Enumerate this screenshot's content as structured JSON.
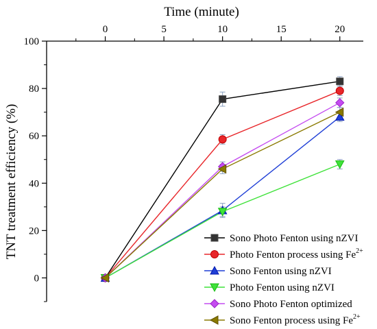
{
  "chart_data": {
    "type": "line",
    "title": "",
    "xlabel": "Time (minute)",
    "ylabel": "TNT treatment efficiency (%)",
    "xlim": [
      -5,
      22
    ],
    "ylim": [
      -10,
      100
    ],
    "x_axis_position": "top",
    "x_ticks": [
      0,
      5,
      10,
      15,
      20
    ],
    "y_ticks": [
      0,
      20,
      40,
      60,
      80,
      100
    ],
    "x": [
      0,
      10,
      20
    ],
    "legend_position": "bottom-right",
    "grid": false,
    "series": [
      {
        "name": "Sono Photo Fenton using nZVI",
        "color": "#000000",
        "marker": "square",
        "values": [
          0,
          75.5,
          83
        ],
        "errors": [
          0,
          3,
          2
        ]
      },
      {
        "name": "Photo Fenton process using Fe",
        "superscript": "2+",
        "color": "#e8262a",
        "marker": "circle",
        "values": [
          0,
          58.5,
          79
        ],
        "errors": [
          0,
          2,
          2
        ]
      },
      {
        "name": "Sono Fenton using nZVI",
        "color": "#1f3fd6",
        "marker": "triangle-up",
        "values": [
          0,
          28.5,
          68
        ],
        "errors": [
          0,
          3,
          2
        ]
      },
      {
        "name": "Photo Fenton using nZVI",
        "color": "#3fe23a",
        "marker": "triangle-down",
        "values": [
          0,
          28,
          48
        ],
        "errors": [
          0,
          2,
          2
        ]
      },
      {
        "name": "Sono Photo Fenton optimized",
        "color": "#c44bf0",
        "marker": "diamond",
        "values": [
          0,
          47,
          74
        ],
        "errors": [
          0,
          2,
          2
        ]
      },
      {
        "name": "Sono Fenton process using Fe",
        "superscript": "2+",
        "color": "#8a7a00",
        "marker": "triangle-left",
        "values": [
          0,
          46,
          70
        ],
        "errors": [
          0,
          2,
          2
        ]
      }
    ]
  }
}
